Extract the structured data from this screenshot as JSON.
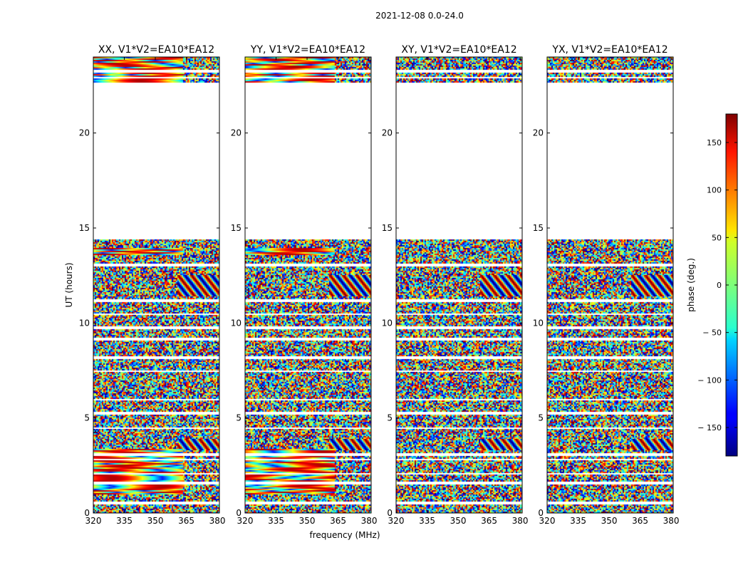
{
  "chart_data": {
    "type": "heatmap",
    "suptitle": "2021-12-08 0.0-24.0",
    "xlabel": "frequency (MHz)",
    "ylabel": "UT (hours)",
    "xlim": [
      320,
      381
    ],
    "ylim": [
      0,
      24
    ],
    "xticks": [
      320,
      335,
      350,
      365,
      380
    ],
    "yticks": [
      0,
      5,
      10,
      15,
      20
    ],
    "panels": [
      {
        "title": "XX, V1*V2=EA10*EA12",
        "coherent_bands": [
          [
            1.0,
            3.4
          ],
          [
            13.6,
            14.0
          ],
          [
            22.7,
            24.0
          ]
        ]
      },
      {
        "title": "YY, V1*V2=EA10*EA12",
        "coherent_bands": [
          [
            1.0,
            3.4
          ],
          [
            13.6,
            14.0
          ],
          [
            22.7,
            24.0
          ]
        ]
      },
      {
        "title": "XY, V1*V2=EA10*EA12",
        "coherent_bands": []
      },
      {
        "title": "YX, V1*V2=EA10*EA12",
        "coherent_bands": []
      }
    ],
    "data_ranges_hours": [
      [
        0.0,
        14.4
      ],
      [
        22.7,
        24.0
      ]
    ],
    "gap_hours": [
      0.55,
      1.6,
      2.1,
      2.85,
      3.1,
      4.5,
      5.3,
      6.0,
      7.5,
      8.2,
      9.2,
      9.8,
      10.5,
      11.2,
      13.1,
      22.95,
      23.3
    ],
    "colorbar": {
      "label": "phase (deg.)",
      "min": -180,
      "max": 180,
      "ticks": [
        150,
        100,
        50,
        0,
        -50,
        -100,
        -150
      ],
      "tick_labels": [
        "150",
        "100",
        "50",
        "0",
        "− 50",
        "− 100",
        "− 150"
      ],
      "colormap": "jet"
    }
  }
}
